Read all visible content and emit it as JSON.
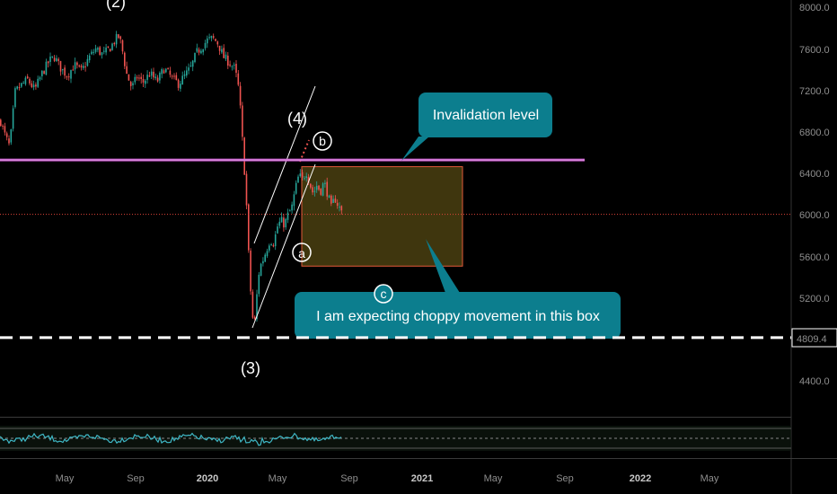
{
  "chart_data": {
    "type": "candlestick",
    "x_ticks": [
      "May",
      "Sep",
      "2020",
      "May",
      "Sep",
      "2021",
      "May",
      "Sep",
      "2022",
      "May"
    ],
    "y_ticks": [
      "8000.0",
      "7600.0",
      "7200.0",
      "6800.0",
      "6400.0",
      "6000.0",
      "5600.0",
      "5200.0",
      "4800.0",
      "4400.0"
    ],
    "ylim": [
      4050,
      8050
    ],
    "price_path": [
      [
        0,
        6900
      ],
      [
        4,
        6780
      ],
      [
        10,
        6650
      ],
      [
        16,
        7180
      ],
      [
        22,
        7240
      ],
      [
        30,
        7300
      ],
      [
        38,
        7200
      ],
      [
        46,
        7360
      ],
      [
        54,
        7480
      ],
      [
        60,
        7520
      ],
      [
        66,
        7420
      ],
      [
        74,
        7340
      ],
      [
        82,
        7440
      ],
      [
        90,
        7380
      ],
      [
        98,
        7510
      ],
      [
        106,
        7600
      ],
      [
        114,
        7540
      ],
      [
        122,
        7610
      ],
      [
        128,
        7690
      ],
      [
        132,
        7720
      ],
      [
        136,
        7560
      ],
      [
        140,
        7360
      ],
      [
        146,
        7220
      ],
      [
        152,
        7330
      ],
      [
        158,
        7270
      ],
      [
        166,
        7360
      ],
      [
        174,
        7280
      ],
      [
        182,
        7410
      ],
      [
        190,
        7320
      ],
      [
        198,
        7260
      ],
      [
        206,
        7350
      ],
      [
        212,
        7420
      ],
      [
        218,
        7560
      ],
      [
        224,
        7620
      ],
      [
        230,
        7680
      ],
      [
        236,
        7700
      ],
      [
        242,
        7650
      ],
      [
        248,
        7520
      ],
      [
        254,
        7470
      ],
      [
        260,
        7410
      ],
      [
        264,
        7280
      ],
      [
        267,
        7000
      ],
      [
        270,
        6600
      ],
      [
        273,
        6220
      ],
      [
        276,
        5620
      ],
      [
        279,
        5150
      ],
      [
        282,
        4870
      ],
      [
        285,
        5200
      ],
      [
        288,
        5480
      ],
      [
        292,
        5560
      ],
      [
        296,
        5660
      ],
      [
        300,
        5760
      ],
      [
        304,
        5720
      ],
      [
        308,
        5880
      ],
      [
        312,
        5940
      ],
      [
        316,
        5900
      ],
      [
        320,
        6000
      ],
      [
        324,
        6060
      ],
      [
        328,
        6240
      ],
      [
        332,
        6380
      ],
      [
        336,
        6330
      ],
      [
        340,
        6420
      ],
      [
        344,
        6300
      ],
      [
        348,
        6200
      ],
      [
        352,
        6280
      ],
      [
        356,
        6220
      ],
      [
        360,
        6310
      ],
      [
        364,
        6200
      ],
      [
        368,
        6060
      ],
      [
        372,
        6160
      ],
      [
        376,
        6080
      ],
      [
        380,
        6020
      ]
    ],
    "hlines": [
      {
        "name": "Invalidation level",
        "value": 6525,
        "color": "#c254c6"
      },
      {
        "name": "current-price",
        "value": 6000,
        "color": "#e0453a"
      },
      {
        "name": "support-4809.4",
        "value": 4809.4,
        "color": "#ffffff"
      }
    ],
    "box": {
      "y_top": 6460,
      "y_bottom": 5500
    },
    "price_label": "4809.4",
    "wave_labels": [
      "(2)",
      "(3)",
      "(4)"
    ],
    "circled_labels": [
      "a",
      "b",
      "c"
    ],
    "callouts": [
      "Invalidation level",
      "I am expecting choppy movement in this box"
    ],
    "colors": {
      "up": "#26a69a",
      "down": "#ef5350",
      "callout_bg": "#0c7e8e",
      "box_fill": "#4a4011",
      "box_border": "#e25a3a",
      "oscillator": "#3fb8c6"
    }
  }
}
